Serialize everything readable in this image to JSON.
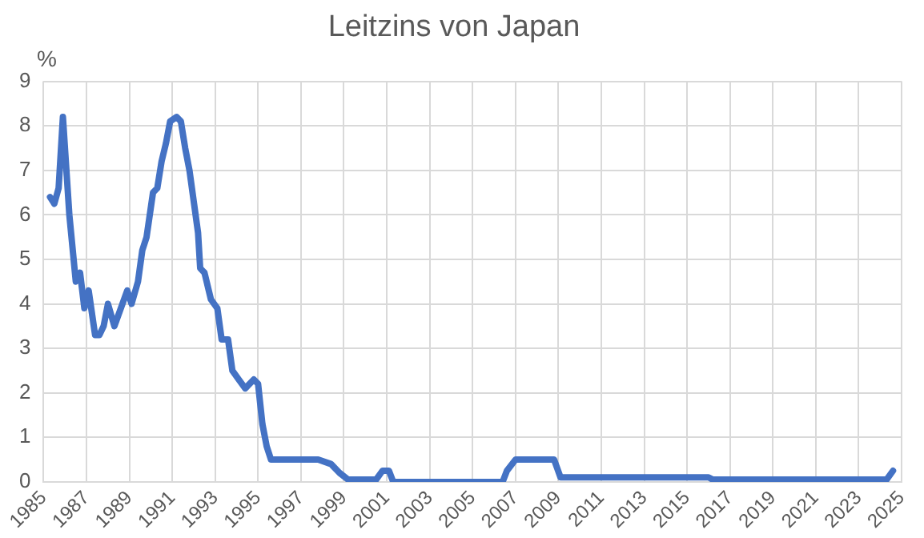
{
  "chart_data": {
    "type": "line",
    "title": "Leitzins von Japan",
    "ylabel": "%",
    "x": [
      1985.3,
      1985.5,
      1985.7,
      1985.9,
      1986.2,
      1986.5,
      1986.7,
      1986.9,
      1987.1,
      1987.4,
      1987.6,
      1987.8,
      1988.0,
      1988.3,
      1988.6,
      1988.9,
      1989.1,
      1989.4,
      1989.6,
      1989.8,
      1990.1,
      1990.3,
      1990.5,
      1990.7,
      1990.9,
      1991.2,
      1991.4,
      1991.6,
      1991.8,
      1992.0,
      1992.2,
      1992.3,
      1992.5,
      1992.8,
      1993.1,
      1993.3,
      1993.6,
      1993.8,
      1994.1,
      1994.4,
      1994.8,
      1995.0,
      1995.2,
      1995.4,
      1995.6,
      1996.0,
      1997.0,
      1997.8,
      1998.4,
      1998.8,
      1999.2,
      2000.5,
      2000.8,
      2001.1,
      2001.3,
      2006.4,
      2006.6,
      2007.0,
      2008.8,
      2009.1,
      2016.0,
      2016.2,
      2024.3,
      2024.6
    ],
    "series": [
      {
        "color": "#4472c4",
        "values": [
          6.4,
          6.25,
          6.6,
          8.2,
          6.0,
          4.5,
          4.7,
          3.9,
          4.3,
          3.3,
          3.3,
          3.5,
          4.0,
          3.5,
          3.9,
          4.3,
          4.0,
          4.5,
          5.2,
          5.5,
          6.5,
          6.6,
          7.2,
          7.6,
          8.1,
          8.2,
          8.1,
          7.5,
          7.0,
          6.3,
          5.6,
          4.8,
          4.7,
          4.1,
          3.9,
          3.2,
          3.2,
          2.5,
          2.3,
          2.1,
          2.3,
          2.2,
          1.3,
          0.8,
          0.5,
          0.5,
          0.5,
          0.5,
          0.4,
          0.2,
          0.05,
          0.05,
          0.25,
          0.25,
          0.0,
          0.0,
          0.25,
          0.5,
          0.5,
          0.1,
          0.1,
          0.05,
          0.05,
          0.25
        ]
      }
    ],
    "xlim": [
      1985,
      2025
    ],
    "xticks": [
      1985,
      1987,
      1989,
      1991,
      1993,
      1995,
      1997,
      1999,
      2001,
      2003,
      2005,
      2007,
      2009,
      2011,
      2013,
      2015,
      2017,
      2019,
      2021,
      2023,
      2025
    ],
    "ylim": [
      0,
      9
    ],
    "yticks": [
      0,
      1,
      2,
      3,
      4,
      5,
      6,
      7,
      8,
      9
    ],
    "grid": true,
    "legend": false,
    "marker": "none",
    "line_style": "solid"
  }
}
